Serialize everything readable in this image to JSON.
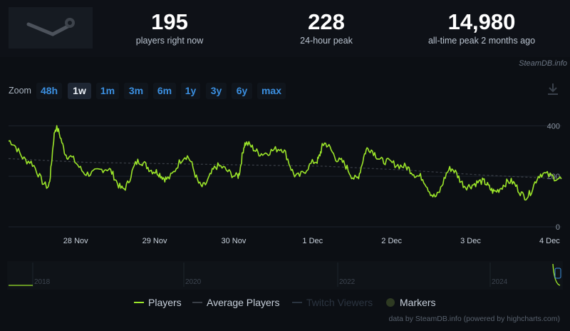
{
  "stats": [
    {
      "value": "195",
      "label": "players right now"
    },
    {
      "value": "228",
      "label": "24-hour peak"
    },
    {
      "value": "14,980",
      "label": "all-time peak 2 months ago"
    }
  ],
  "credit": "SteamDB.info",
  "zoom": {
    "label": "Zoom",
    "options": [
      "48h",
      "1w",
      "1m",
      "3m",
      "6m",
      "1y",
      "3y",
      "6y",
      "max"
    ],
    "selected": "1w"
  },
  "colors": {
    "players": "#9ce62a",
    "average": "#3a3f47",
    "twitch": "#2b3440",
    "markers": "#2e3a22",
    "axis_text": "#c7d0db",
    "grid": "#1d232c",
    "zoom_link": "#3b8fe0"
  },
  "navigator_labels": [
    "2018",
    "2020",
    "2022",
    "2024"
  ],
  "legend": [
    {
      "name": "Players",
      "color": "#9ce62a"
    },
    {
      "name": "Average Players",
      "color": "#3a3f47"
    },
    {
      "name": "Twitch Viewers",
      "color": "#2b3440"
    },
    {
      "name": "Markers",
      "color": "#2e3a22"
    }
  ],
  "footer": "data by SteamDB.info (powered by highcharts.com)",
  "chart_data": {
    "type": "line",
    "x_ticks": [
      "28 Nov",
      "29 Nov",
      "30 Nov",
      "1 Dec",
      "2 Dec",
      "3 Dec",
      "4 Dec"
    ],
    "x_range": [
      "27 Nov",
      "4 Dec"
    ],
    "y_ticks": [
      0,
      200,
      400
    ],
    "ylim": [
      0,
      480
    ],
    "grid": true,
    "legend_position": "bottom",
    "series": [
      {
        "name": "Players",
        "x_days": [
          0,
          0.25,
          0.5,
          0.6,
          0.75,
          1.0,
          1.25,
          1.45,
          1.65,
          1.85,
          2.0,
          2.25,
          2.45,
          2.65,
          2.9,
          3.0,
          3.2,
          3.45,
          3.65,
          3.9,
          4.0,
          4.2,
          4.4,
          4.55,
          4.75,
          5.0,
          5.2,
          5.4,
          5.6,
          5.8,
          6.0,
          6.15,
          6.35,
          6.55,
          6.75,
          7.0
        ],
        "values": [
          340,
          260,
          160,
          390,
          280,
          210,
          230,
          150,
          260,
          220,
          190,
          280,
          160,
          240,
          200,
          330,
          290,
          310,
          200,
          260,
          330,
          260,
          190,
          310,
          260,
          240,
          200,
          120,
          230,
          160,
          180,
          140,
          180,
          120,
          210,
          190
        ]
      },
      {
        "name": "Average Players",
        "x_days": [
          0,
          1,
          2,
          3,
          4,
          5,
          6,
          7
        ],
        "values": [
          270,
          255,
          250,
          245,
          240,
          225,
          205,
          190
        ]
      }
    ]
  }
}
